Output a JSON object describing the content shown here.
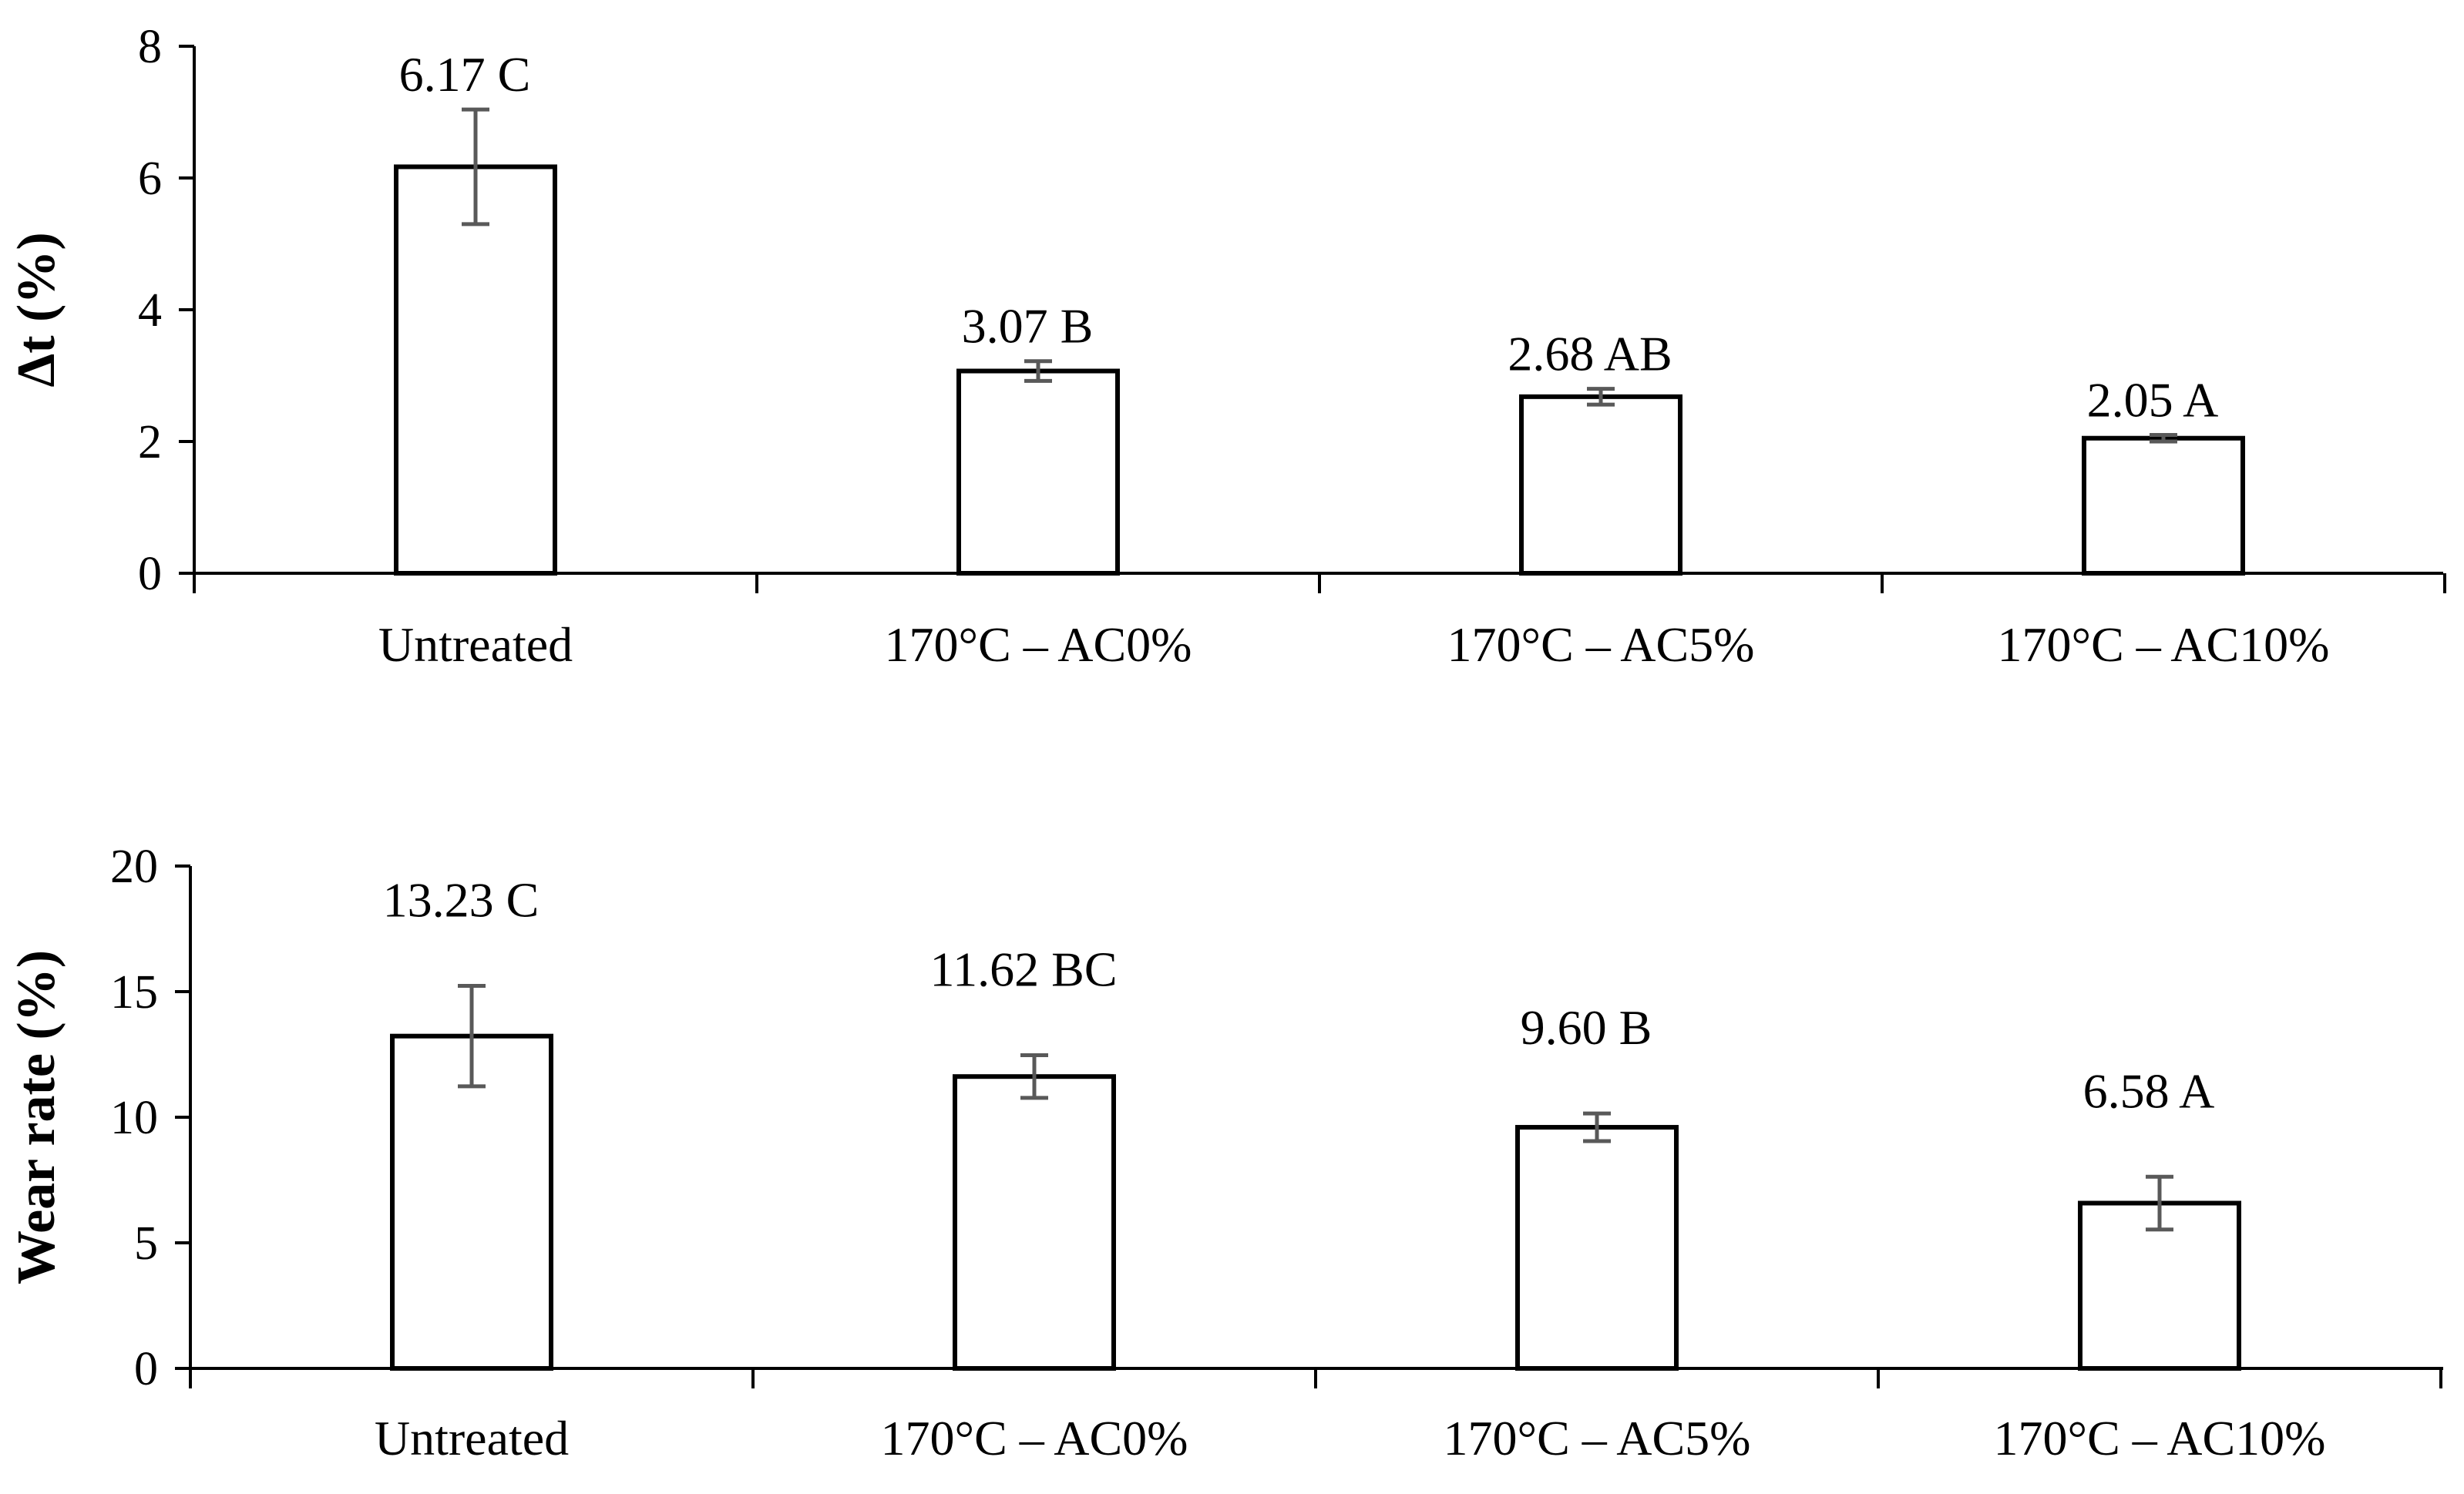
{
  "colors": {
    "bar_fill": "#ffffff",
    "bar_stroke": "#000000",
    "axis": "#000000",
    "error_bar": "#595959"
  },
  "chart_data": [
    {
      "type": "bar",
      "title": "",
      "xlabel": "",
      "ylabel": "Δt (%)",
      "ylim": [
        0,
        8
      ],
      "yticks": [
        0,
        2,
        4,
        6,
        8
      ],
      "ytick_labels": [
        "0",
        "2",
        "4",
        "6",
        "8"
      ],
      "grid": false,
      "legend": "none",
      "categories": [
        "Untreated",
        "170°C – AC0%",
        "170°C – AC5%",
        "170°C – AC10%"
      ],
      "values": [
        6.17,
        3.07,
        2.68,
        2.05
      ],
      "errors": [
        0.87,
        0.15,
        0.12,
        0.05
      ],
      "value_labels": [
        "6.17 C",
        "3.07 B",
        "2.68 AB",
        "2.05 A"
      ]
    },
    {
      "type": "bar",
      "title": "",
      "xlabel": "",
      "ylabel": "Wear rate (%)",
      "ylim": [
        0,
        20
      ],
      "yticks": [
        0,
        5,
        10,
        15,
        20
      ],
      "ytick_labels": [
        "0",
        "5",
        "10",
        "15",
        "20"
      ],
      "grid": false,
      "legend": "none",
      "categories": [
        "Untreated",
        "170°C – AC0%",
        "170°C – AC5%",
        "170°C – AC10%"
      ],
      "values": [
        13.23,
        11.62,
        9.6,
        6.58
      ],
      "errors": [
        2.0,
        0.85,
        0.55,
        1.05
      ],
      "value_labels": [
        "13.23 C",
        "11.62 BC",
        "9.60 B",
        "6.58 A"
      ]
    }
  ]
}
